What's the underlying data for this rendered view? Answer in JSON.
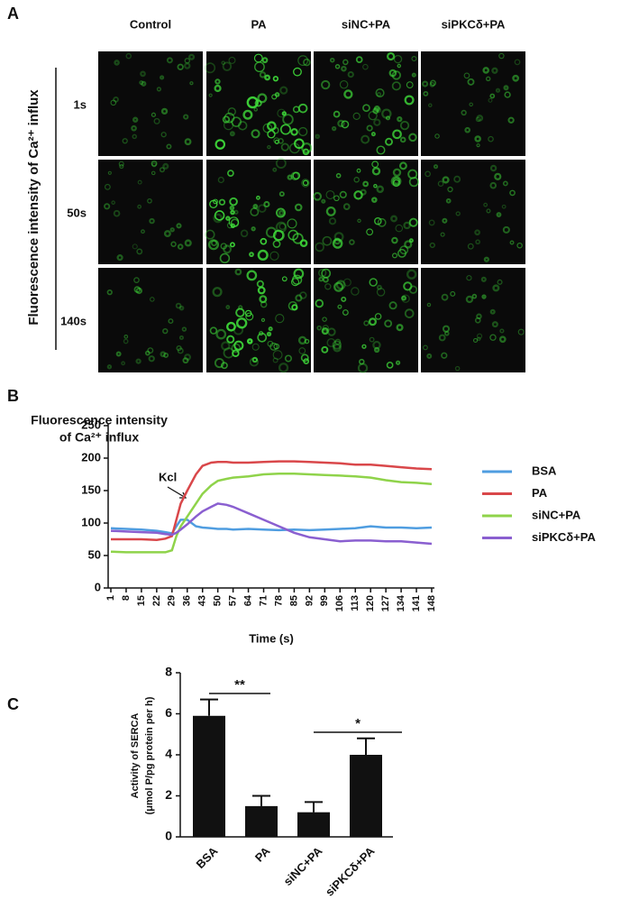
{
  "panel_labels": [
    "A",
    "B",
    "C"
  ],
  "panel_a": {
    "columns": [
      "Control",
      "PA",
      "siNC+PA",
      "siPKCδ+PA"
    ],
    "rows": [
      "1s",
      "50s",
      "140s"
    ],
    "axis_label": "Fluorescence intensity of Ca²⁺ influx"
  },
  "chart_data": [
    {
      "type": "line",
      "ylabel_lines": [
        "Fluorescence intensity",
        "of Ca²⁺ influx"
      ],
      "xlabel": "Time (s)",
      "annotation": "Kcl",
      "x": [
        1,
        8,
        15,
        22,
        26,
        29,
        31,
        33,
        36,
        40,
        43,
        47,
        50,
        54,
        57,
        64,
        71,
        78,
        85,
        92,
        99,
        106,
        113,
        120,
        127,
        134,
        141,
        148
      ],
      "xlim": [
        1,
        148
      ],
      "xticks": [
        1,
        8,
        15,
        22,
        29,
        36,
        43,
        50,
        57,
        64,
        71,
        78,
        85,
        92,
        99,
        106,
        113,
        120,
        127,
        134,
        141,
        148
      ],
      "ylim": [
        0,
        250
      ],
      "yticks": [
        0,
        50,
        100,
        150,
        200,
        250
      ],
      "series": [
        {
          "name": "BSA",
          "color": "#4f9de0",
          "values": [
            92,
            91,
            90,
            88,
            86,
            84,
            95,
            105,
            105,
            95,
            93,
            92,
            91,
            91,
            90,
            91,
            90,
            89,
            90,
            89,
            90,
            91,
            92,
            95,
            93,
            93,
            92,
            93
          ]
        },
        {
          "name": "PA",
          "color": "#d9474a",
          "values": [
            75,
            75,
            75,
            74,
            76,
            80,
            105,
            130,
            150,
            175,
            188,
            193,
            194,
            194,
            193,
            193,
            194,
            195,
            195,
            194,
            193,
            192,
            190,
            190,
            188,
            186,
            184,
            183
          ]
        },
        {
          "name": "siNC+PA",
          "color": "#8fd34a",
          "values": [
            56,
            55,
            55,
            55,
            55,
            58,
            80,
            95,
            110,
            130,
            145,
            158,
            165,
            168,
            170,
            172,
            175,
            176,
            176,
            175,
            174,
            173,
            172,
            170,
            166,
            163,
            162,
            160
          ]
        },
        {
          "name": "siPKCδ+PA",
          "color": "#8a5fd0",
          "values": [
            88,
            87,
            86,
            85,
            83,
            82,
            85,
            90,
            98,
            110,
            118,
            125,
            130,
            128,
            125,
            115,
            105,
            95,
            85,
            78,
            75,
            72,
            73,
            73,
            72,
            72,
            70,
            68
          ]
        }
      ]
    },
    {
      "type": "bar",
      "ylabel_lines": [
        "Activity of SERCA",
        "(μmol P/pg protein per h)"
      ],
      "categories": [
        "BSA",
        "PA",
        "siNC+PA",
        "siPKCδ+PA"
      ],
      "values": [
        5.9,
        1.5,
        1.2,
        4.0
      ],
      "errors": [
        0.8,
        0.5,
        0.5,
        0.8
      ],
      "color": "#111111",
      "ylim": [
        0,
        8
      ],
      "yticks": [
        0,
        2,
        4,
        6,
        8
      ],
      "significance": [
        "**",
        "*"
      ]
    }
  ]
}
